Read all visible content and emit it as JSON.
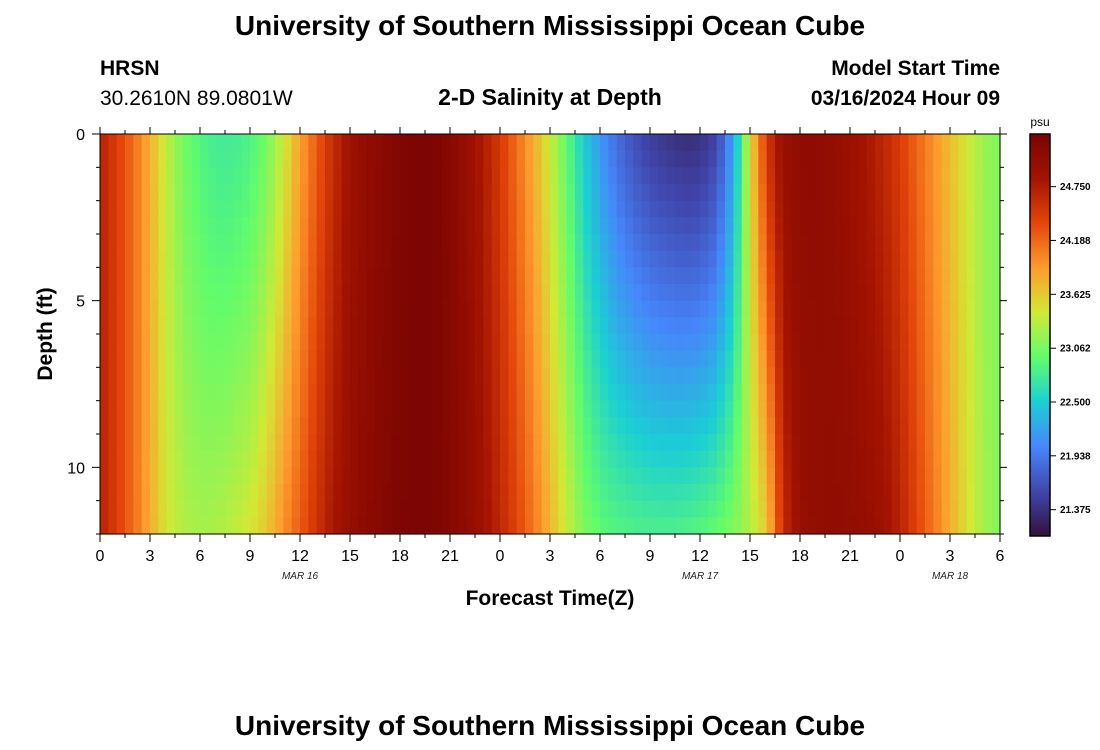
{
  "header": {
    "title": "University of Southern Mississippi Ocean Cube",
    "station": "HRSN",
    "coords": "30.2610N  89.0801W",
    "subtitle": "2-D Salinity at Depth",
    "model_start_label": "Model Start Time",
    "model_start_value": "03/16/2024 Hour 09"
  },
  "footer": {
    "title": "University of Southern Mississippi Ocean Cube"
  },
  "chart_data": {
    "type": "heatmap",
    "title": "2-D Salinity at Depth",
    "xlabel": "Forecast Time(Z)",
    "ylabel": "Depth (ft)",
    "x_hours_range": [
      0,
      54
    ],
    "x_ticks": [
      0,
      3,
      6,
      9,
      12,
      15,
      18,
      21,
      24,
      27,
      30,
      33,
      36,
      39,
      42,
      45,
      48,
      51,
      54
    ],
    "x_tick_labels": [
      "0",
      "3",
      "6",
      "9",
      "12",
      "15",
      "18",
      "21",
      "0",
      "3",
      "6",
      "9",
      "12",
      "15",
      "18",
      "21",
      "0",
      "3",
      "6"
    ],
    "date_labels": [
      {
        "label": "MAR 16",
        "hour": 12
      },
      {
        "label": "MAR 17",
        "hour": 36
      },
      {
        "label": "MAR 18",
        "hour": 51
      }
    ],
    "ylim": [
      0,
      12
    ],
    "y_ticks": [
      0,
      5,
      10
    ],
    "y_tick_labels": [
      "0",
      "5",
      "10"
    ],
    "colorbar": {
      "unit": "psu",
      "range": [
        21.1,
        25.3
      ],
      "tick_values": [
        24.75,
        24.188,
        23.625,
        23.062,
        22.5,
        21.938,
        21.375
      ],
      "tick_labels": [
        "24.750",
        "24.188",
        "23.625",
        "23.062",
        "22.500",
        "21.938",
        "21.375"
      ]
    },
    "color_stops": [
      "#30123b",
      "#4146ad",
      "#4686fb",
      "#1bcfd4",
      "#61fc6c",
      "#d2e935",
      "#fe9b2d",
      "#e4460a",
      "#a31301",
      "#7a0403"
    ],
    "surface_profile": [
      [
        0,
        24.7
      ],
      [
        1,
        24.45
      ],
      [
        2,
        24.15
      ],
      [
        3,
        23.78
      ],
      [
        4,
        23.35
      ],
      [
        5,
        23.05
      ],
      [
        6,
        22.88
      ],
      [
        7,
        22.78
      ],
      [
        8,
        22.78
      ],
      [
        9,
        22.85
      ],
      [
        10,
        23.05
      ],
      [
        11,
        23.4
      ],
      [
        12,
        23.85
      ],
      [
        13,
        24.25
      ],
      [
        14,
        24.6
      ],
      [
        15,
        24.88
      ],
      [
        16,
        25.02
      ],
      [
        17,
        25.12
      ],
      [
        18,
        25.22
      ],
      [
        19,
        25.27
      ],
      [
        20,
        25.25
      ],
      [
        21,
        25.15
      ],
      [
        22,
        24.98
      ],
      [
        23,
        24.75
      ],
      [
        24,
        24.48
      ],
      [
        25,
        24.15
      ],
      [
        26,
        23.8
      ],
      [
        27,
        23.4
      ],
      [
        28,
        22.95
      ],
      [
        29,
        22.5
      ],
      [
        30,
        22.15
      ],
      [
        31,
        21.85
      ],
      [
        32,
        21.65
      ],
      [
        33,
        21.5
      ],
      [
        34,
        21.42
      ],
      [
        35,
        21.37
      ],
      [
        36,
        21.38
      ],
      [
        37,
        21.55
      ],
      [
        38,
        22.2
      ],
      [
        39,
        23.5
      ],
      [
        40,
        24.5
      ],
      [
        41,
        24.95
      ],
      [
        42,
        25.05
      ],
      [
        43,
        25.05
      ],
      [
        44,
        25.0
      ],
      [
        45,
        24.92
      ],
      [
        46,
        24.8
      ],
      [
        47,
        24.65
      ],
      [
        48,
        24.45
      ],
      [
        49,
        24.2
      ],
      [
        50,
        23.95
      ],
      [
        51,
        23.7
      ],
      [
        52,
        23.45
      ],
      [
        53,
        23.2
      ],
      [
        54,
        23.1
      ]
    ],
    "bottom_profile": [
      [
        0,
        24.7
      ],
      [
        1,
        24.45
      ],
      [
        2,
        24.15
      ],
      [
        3,
        23.8
      ],
      [
        4,
        23.45
      ],
      [
        5,
        23.3
      ],
      [
        6,
        23.25
      ],
      [
        7,
        23.28
      ],
      [
        8,
        23.35
      ],
      [
        9,
        23.45
      ],
      [
        10,
        23.65
      ],
      [
        11,
        23.95
      ],
      [
        12,
        24.25
      ],
      [
        13,
        24.55
      ],
      [
        14,
        24.8
      ],
      [
        15,
        24.98
      ],
      [
        16,
        25.1
      ],
      [
        17,
        25.18
      ],
      [
        18,
        25.25
      ],
      [
        19,
        25.27
      ],
      [
        20,
        25.25
      ],
      [
        21,
        25.18
      ],
      [
        22,
        25.05
      ],
      [
        23,
        24.88
      ],
      [
        24,
        24.65
      ],
      [
        25,
        24.4
      ],
      [
        26,
        24.1
      ],
      [
        27,
        23.75
      ],
      [
        28,
        23.4
      ],
      [
        29,
        23.1
      ],
      [
        30,
        22.95
      ],
      [
        31,
        22.88
      ],
      [
        32,
        22.85
      ],
      [
        33,
        22.83
      ],
      [
        34,
        22.83
      ],
      [
        35,
        22.85
      ],
      [
        36,
        22.9
      ],
      [
        37,
        22.98
      ],
      [
        38,
        23.1
      ],
      [
        39,
        23.3
      ],
      [
        40,
        23.6
      ],
      [
        41,
        24.6
      ],
      [
        42,
        24.95
      ],
      [
        43,
        25.02
      ],
      [
        44,
        25.05
      ],
      [
        45,
        25.02
      ],
      [
        46,
        24.98
      ],
      [
        47,
        24.9
      ],
      [
        48,
        24.7
      ],
      [
        49,
        24.4
      ],
      [
        50,
        24.1
      ],
      [
        51,
        23.8
      ],
      [
        52,
        23.5
      ],
      [
        53,
        23.25
      ],
      [
        54,
        23.1
      ]
    ]
  }
}
